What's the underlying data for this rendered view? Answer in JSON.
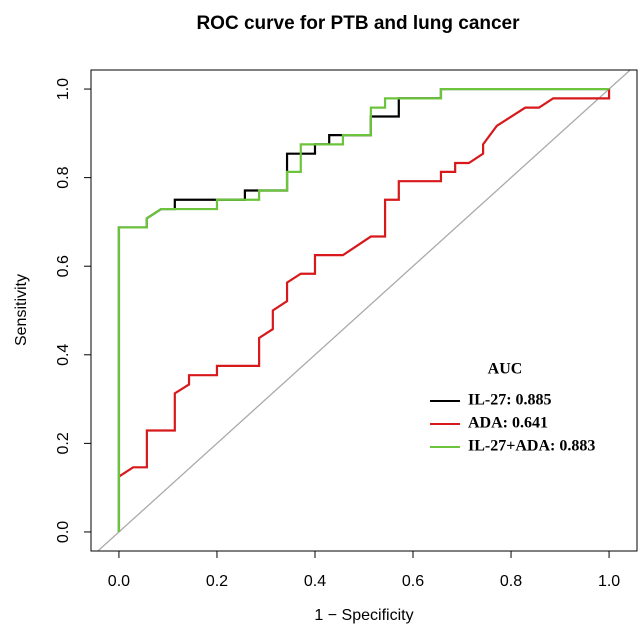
{
  "chart_data": {
    "type": "step-line",
    "title": "ROC curve for PTB and lung cancer",
    "xlabel": "1 − Specificity",
    "ylabel": "Sensitivity",
    "legend_title": "AUC",
    "xlim": [
      -0.057,
      1.057
    ],
    "ylim": [
      -0.043,
      1.043
    ],
    "xticks": [
      {
        "value": 0,
        "label": "0.0"
      },
      0.2,
      0.4,
      0.6,
      0.8,
      {
        "value": 1,
        "label": "1.0"
      }
    ],
    "yticks": [
      {
        "value": 0,
        "label": "0.0"
      },
      0.2,
      0.4,
      0.6,
      0.8,
      {
        "value": 1,
        "label": "1.0"
      }
    ],
    "series": [
      {
        "name": "IL-27: 0.885",
        "color": "#000000",
        "x": [
          0,
          0,
          0.057,
          0.057,
          0.086,
          0.114,
          0.114,
          0.257,
          0.257,
          0.343,
          0.343,
          0.4,
          0.4,
          0.429,
          0.429,
          0.514,
          0.514,
          0.571,
          0.571,
          0.657,
          0.657,
          1
        ],
        "values": [
          0,
          0.6875,
          0.6875,
          0.708,
          0.729,
          0.729,
          0.75,
          0.75,
          0.771,
          0.771,
          0.854,
          0.854,
          0.875,
          0.875,
          0.896,
          0.896,
          0.938,
          0.938,
          0.979,
          0.979,
          1,
          1
        ]
      },
      {
        "name": "ADA: 0.641",
        "color": "#d7191c",
        "x": [
          0,
          0.029,
          0.057,
          0.057,
          0.114,
          0.114,
          0.143,
          0.143,
          0.2,
          0.2,
          0.286,
          0.286,
          0.314,
          0.314,
          0.343,
          0.343,
          0.371,
          0.4,
          0.4,
          0.457,
          0.514,
          0.543,
          0.543,
          0.571,
          0.571,
          0.657,
          0.657,
          0.686,
          0.686,
          0.714,
          0.743,
          0.743,
          0.771,
          0.829,
          0.857,
          0.886,
          1,
          1
        ],
        "values": [
          0.125,
          0.146,
          0.146,
          0.229,
          0.229,
          0.313,
          0.333,
          0.354,
          0.354,
          0.375,
          0.375,
          0.438,
          0.458,
          0.5,
          0.521,
          0.563,
          0.583,
          0.583,
          0.625,
          0.625,
          0.667,
          0.667,
          0.75,
          0.75,
          0.792,
          0.792,
          0.813,
          0.813,
          0.833,
          0.833,
          0.854,
          0.875,
          0.917,
          0.958,
          0.958,
          0.979,
          0.979,
          1
        ]
      },
      {
        "name": "IL-27+ADA: 0.883",
        "color": "#6cc43c",
        "x": [
          0,
          0,
          0.057,
          0.057,
          0.086,
          0.2,
          0.2,
          0.286,
          0.286,
          0.343,
          0.343,
          0.371,
          0.371,
          0.457,
          0.457,
          0.514,
          0.514,
          0.543,
          0.543,
          0.657,
          0.657,
          1
        ],
        "values": [
          0,
          0.6875,
          0.6875,
          0.708,
          0.729,
          0.729,
          0.75,
          0.75,
          0.771,
          0.771,
          0.813,
          0.813,
          0.875,
          0.875,
          0.896,
          0.896,
          0.958,
          0.958,
          0.979,
          0.979,
          1,
          1
        ]
      }
    ]
  }
}
